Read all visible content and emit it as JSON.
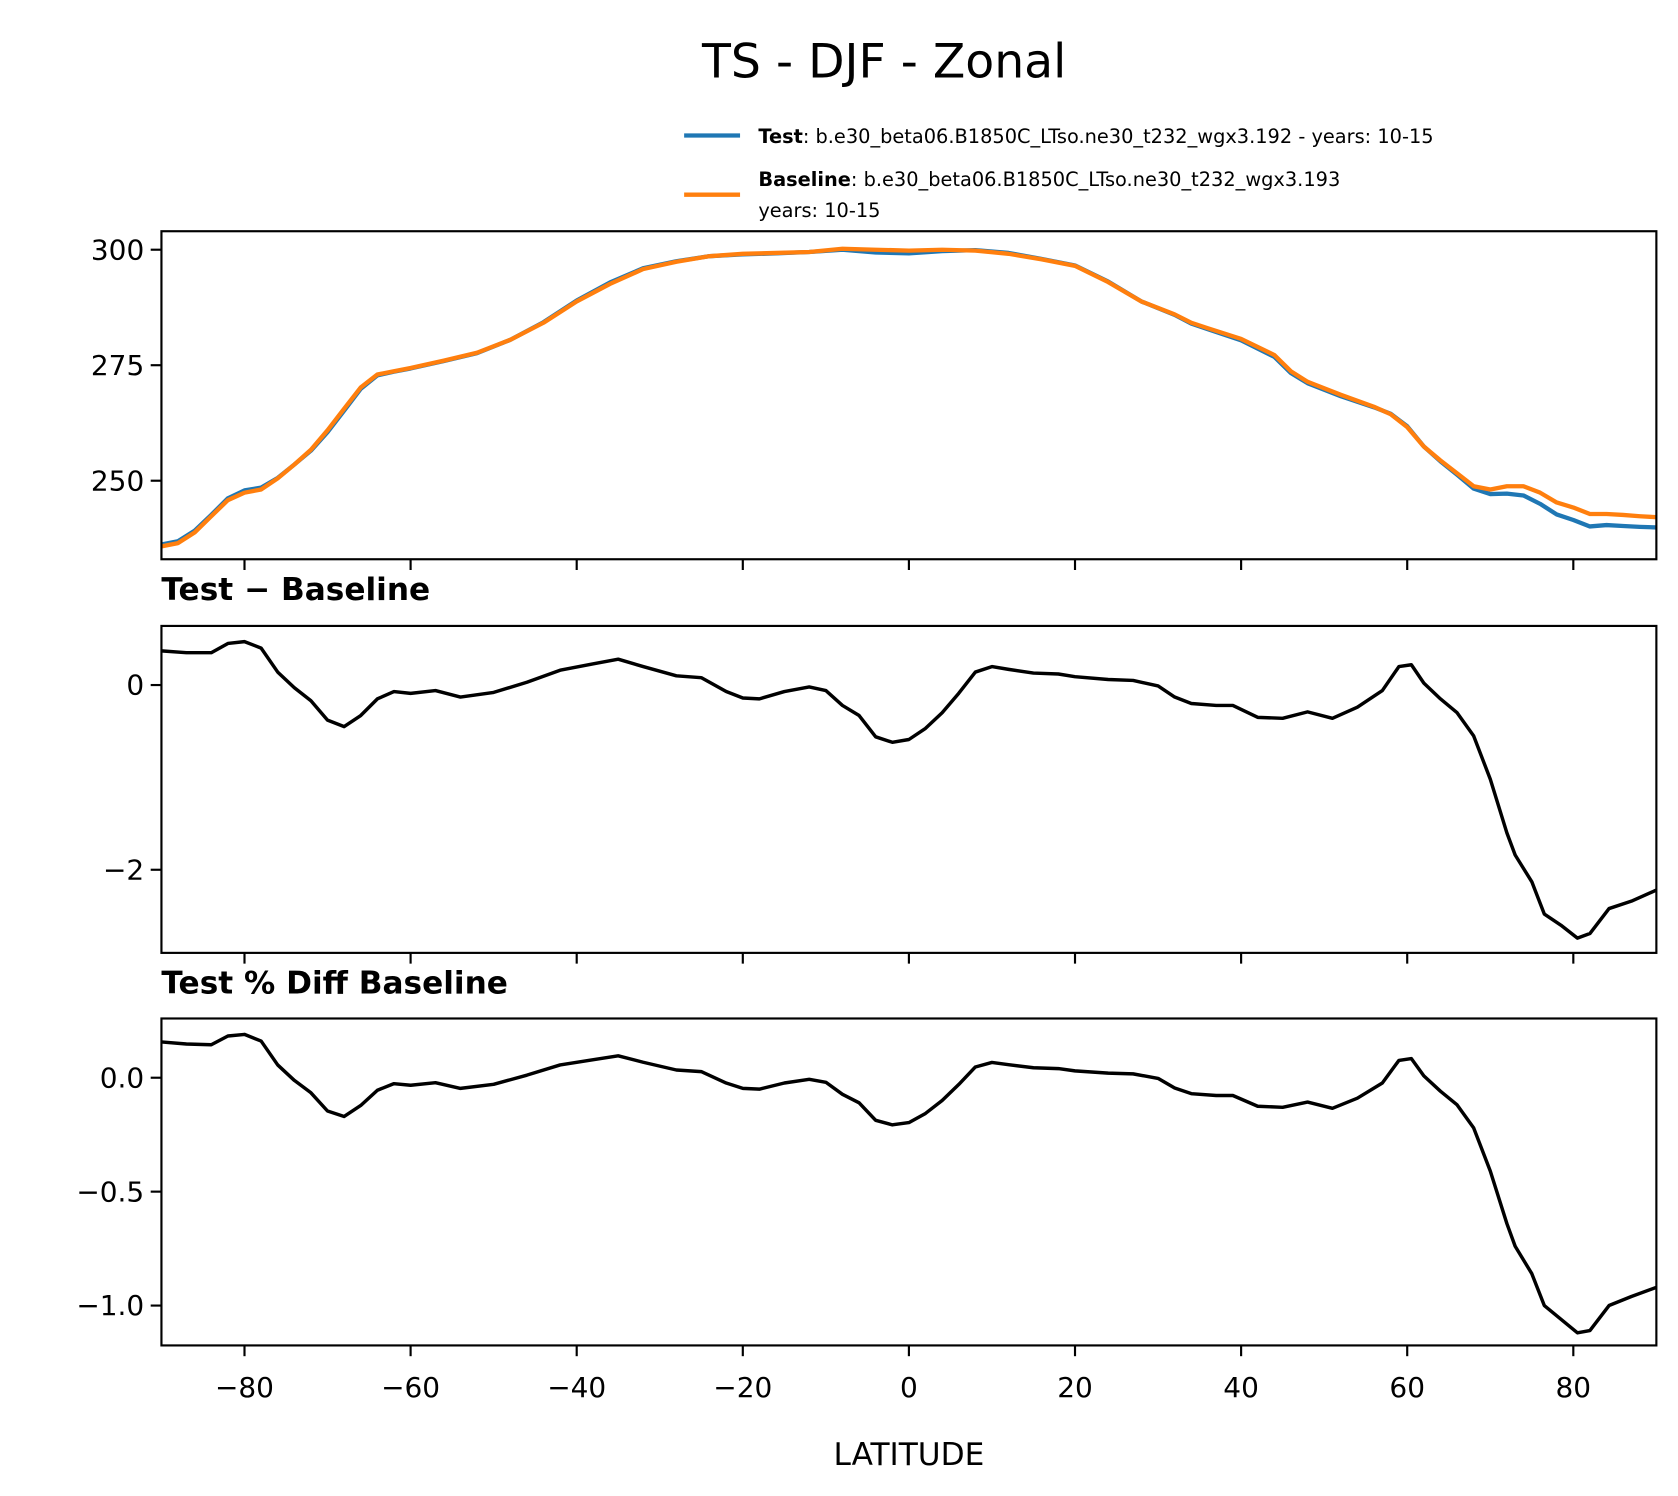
{
  "chart_data": {
    "type": "line",
    "title": "TS - DJF - Zonal",
    "xlabel": "LATITUDE",
    "xlim": [
      -90,
      90
    ],
    "x_ticks": [
      -80,
      -60,
      -40,
      -20,
      0,
      20,
      40,
      60,
      80
    ],
    "x_tick_labels": [
      "−80",
      "−60",
      "−40",
      "−20",
      "0",
      "20",
      "40",
      "60",
      "80"
    ],
    "legend": {
      "placement": "above top panel, right",
      "entries": [
        {
          "name": "Test",
          "desc": ": b.e30_beta06.B1850C_LTso.ne30_t232_wgx3.192 - years: 10-15",
          "color": "#1f77b4"
        },
        {
          "name": "Baseline",
          "desc": ": b.e30_beta06.B1850C_LTso.ne30_t232_wgx3.193",
          "desc2": "years: 10-15",
          "color": "#ff7f0e"
        }
      ]
    },
    "panels": [
      {
        "subtitle": "",
        "ylim": [
          233,
          304
        ],
        "y_ticks": [
          250,
          275,
          300
        ],
        "y_tick_labels": [
          "250",
          "275",
          "300"
        ],
        "series": [
          {
            "name": "Test",
            "color": "#1f77b4",
            "x": [
              -90,
              -88,
              -86,
              -84,
              -82,
              -80,
              -78,
              -76,
              -74,
              -72,
              -70,
              -68,
              -66,
              -64,
              -62,
              -60,
              -56,
              -52,
              -48,
              -44,
              -40,
              -36,
              -32,
              -28,
              -24,
              -20,
              -16,
              -12,
              -8,
              -4,
              0,
              4,
              8,
              12,
              16,
              20,
              24,
              28,
              32,
              34,
              36,
              40,
              44,
              46,
              48,
              52,
              56,
              58,
              60,
              62,
              64,
              66,
              68,
              70,
              72,
              74,
              76,
              78,
              80,
              82,
              84,
              86,
              88,
              90
            ],
            "y": [
              236.2,
              236.9,
              239.2,
              242.6,
              246.2,
              247.9,
              248.5,
              250.6,
              253.5,
              256.5,
              260.5,
              265.2,
              269.9,
              272.8,
              273.6,
              274.3,
              275.9,
              277.6,
              280.5,
              284.3,
              289.0,
              292.9,
              296.0,
              297.5,
              298.6,
              299.0,
              299.2,
              299.5,
              300.0,
              299.4,
              299.2,
              299.7,
              299.9,
              299.3,
              298.0,
              296.6,
              293.1,
              288.8,
              285.9,
              284.0,
              282.8,
              280.4,
              276.8,
              273.3,
              271.1,
              268.3,
              265.9,
              264.5,
              261.8,
              257.4,
              254.2,
              251.3,
              248.3,
              247.1,
              247.2,
              246.8,
              245.0,
              242.7,
              241.5,
              240.1,
              240.4,
              240.2,
              240.0,
              239.9
            ]
          },
          {
            "name": "Baseline",
            "color": "#ff7f0e",
            "x": [
              -90,
              -88,
              -86,
              -84,
              -82,
              -80,
              -78,
              -76,
              -74,
              -72,
              -70,
              -68,
              -66,
              -64,
              -62,
              -60,
              -56,
              -52,
              -48,
              -44,
              -40,
              -36,
              -32,
              -28,
              -24,
              -20,
              -16,
              -12,
              -8,
              -4,
              0,
              4,
              8,
              12,
              16,
              20,
              24,
              28,
              32,
              34,
              36,
              40,
              44,
              46,
              48,
              52,
              56,
              58,
              60,
              62,
              64,
              66,
              68,
              70,
              72,
              74,
              76,
              78,
              80,
              82,
              84,
              86,
              88,
              90
            ],
            "y": [
              235.8,
              236.5,
              238.8,
              242.3,
              245.8,
              247.4,
              248.1,
              250.5,
              253.5,
              256.7,
              260.9,
              265.6,
              270.2,
              273.0,
              273.7,
              274.4,
              276.0,
              277.7,
              280.5,
              284.2,
              288.8,
              292.6,
              295.8,
              297.4,
              298.6,
              299.1,
              299.3,
              299.5,
              300.2,
              300.0,
              299.8,
              300.0,
              299.8,
              299.1,
              297.9,
              296.5,
              293.0,
              288.8,
              286.0,
              284.2,
              283.0,
              280.7,
              277.2,
              273.7,
              271.4,
              268.6,
              266.0,
              264.4,
              261.6,
              257.4,
              254.4,
              251.6,
              248.8,
              248.1,
              248.8,
              248.8,
              247.4,
              245.3,
              244.2,
              242.8,
              242.8,
              242.6,
              242.3,
              242.1
            ]
          }
        ]
      },
      {
        "subtitle": "Test − Baseline",
        "ylim": [
          -2.9,
          0.64
        ],
        "y_ticks": [
          -2,
          0
        ],
        "y_tick_labels": [
          "−2",
          "0"
        ],
        "series": [
          {
            "color": "#000000",
            "x": [
              -90,
              -87,
              -84,
              -82,
              -80,
              -78,
              -76,
              -74,
              -72,
              -70,
              -68,
              -66,
              -64,
              -62,
              -60,
              -57,
              -54,
              -50,
              -46,
              -42,
              -38,
              -35,
              -32,
              -28,
              -25,
              -22,
              -20,
              -18,
              -15,
              -12,
              -10,
              -8,
              -6,
              -4,
              -2,
              0,
              2,
              4,
              6,
              8,
              10,
              12,
              15,
              18,
              20,
              24,
              27,
              30,
              32,
              34,
              37,
              39,
              42,
              45,
              48,
              51,
              54,
              57,
              59,
              60.5,
              62,
              64,
              66,
              68,
              70,
              72,
              73,
              75,
              76.5,
              78.5,
              80.5,
              82,
              84.3,
              87,
              90
            ],
            "y": [
              0.37,
              0.35,
              0.35,
              0.45,
              0.47,
              0.4,
              0.14,
              -0.03,
              -0.17,
              -0.38,
              -0.45,
              -0.33,
              -0.15,
              -0.07,
              -0.09,
              -0.06,
              -0.13,
              -0.08,
              0.03,
              0.16,
              0.23,
              0.28,
              0.2,
              0.1,
              0.08,
              -0.07,
              -0.14,
              -0.15,
              -0.07,
              -0.02,
              -0.06,
              -0.22,
              -0.33,
              -0.56,
              -0.62,
              -0.59,
              -0.47,
              -0.3,
              -0.09,
              0.14,
              0.2,
              0.17,
              0.13,
              0.12,
              0.09,
              0.06,
              0.05,
              -0.01,
              -0.13,
              -0.2,
              -0.22,
              -0.22,
              -0.35,
              -0.36,
              -0.29,
              -0.36,
              -0.24,
              -0.06,
              0.2,
              0.22,
              0.02,
              -0.15,
              -0.3,
              -0.55,
              -1.02,
              -1.6,
              -1.84,
              -2.13,
              -2.48,
              -2.6,
              -2.74,
              -2.69,
              -2.42,
              -2.34,
              -2.22
            ]
          }
        ]
      },
      {
        "subtitle": "Test % Diff Baseline",
        "ylim": [
          -1.175,
          0.26
        ],
        "y_ticks": [
          -1.0,
          -0.5,
          0.0
        ],
        "y_tick_labels": [
          "−1.0",
          "−0.5",
          "0.0"
        ],
        "series": [
          {
            "color": "#000000",
            "x": [
              -90,
              -87,
              -84,
              -82,
              -80,
              -78,
              -76,
              -74,
              -72,
              -70,
              -68,
              -66,
              -64,
              -62,
              -60,
              -57,
              -54,
              -50,
              -46,
              -42,
              -38,
              -35,
              -32,
              -28,
              -25,
              -22,
              -20,
              -18,
              -15,
              -12,
              -10,
              -8,
              -6,
              -4,
              -2,
              0,
              2,
              4,
              6,
              8,
              10,
              12,
              15,
              18,
              20,
              24,
              27,
              30,
              32,
              34,
              37,
              39,
              42,
              45,
              48,
              51,
              54,
              57,
              59,
              60.5,
              62,
              64,
              66,
              68,
              70,
              72,
              73,
              75,
              76.5,
              78.5,
              80.5,
              82,
              84.3,
              87,
              90
            ],
            "y": [
              0.157,
              0.148,
              0.145,
              0.183,
              0.19,
              0.161,
              0.056,
              -0.012,
              -0.066,
              -0.146,
              -0.17,
              -0.122,
              -0.055,
              -0.026,
              -0.033,
              -0.022,
              -0.047,
              -0.029,
              0.011,
              0.056,
              0.079,
              0.096,
              0.068,
              0.034,
              0.027,
              -0.023,
              -0.047,
              -0.05,
              -0.023,
              -0.007,
              -0.02,
              -0.073,
              -0.11,
              -0.187,
              -0.207,
              -0.197,
              -0.157,
              -0.1,
              -0.03,
              0.047,
              0.067,
              0.057,
              0.044,
              0.04,
              0.03,
              0.02,
              0.017,
              -0.003,
              -0.045,
              -0.07,
              -0.078,
              -0.078,
              -0.125,
              -0.13,
              -0.107,
              -0.134,
              -0.09,
              -0.023,
              0.076,
              0.084,
              0.008,
              -0.059,
              -0.119,
              -0.22,
              -0.41,
              -0.64,
              -0.74,
              -0.86,
              -1.0,
              -1.06,
              -1.12,
              -1.11,
              -1.0,
              -0.96,
              -0.92
            ]
          }
        ]
      }
    ]
  }
}
